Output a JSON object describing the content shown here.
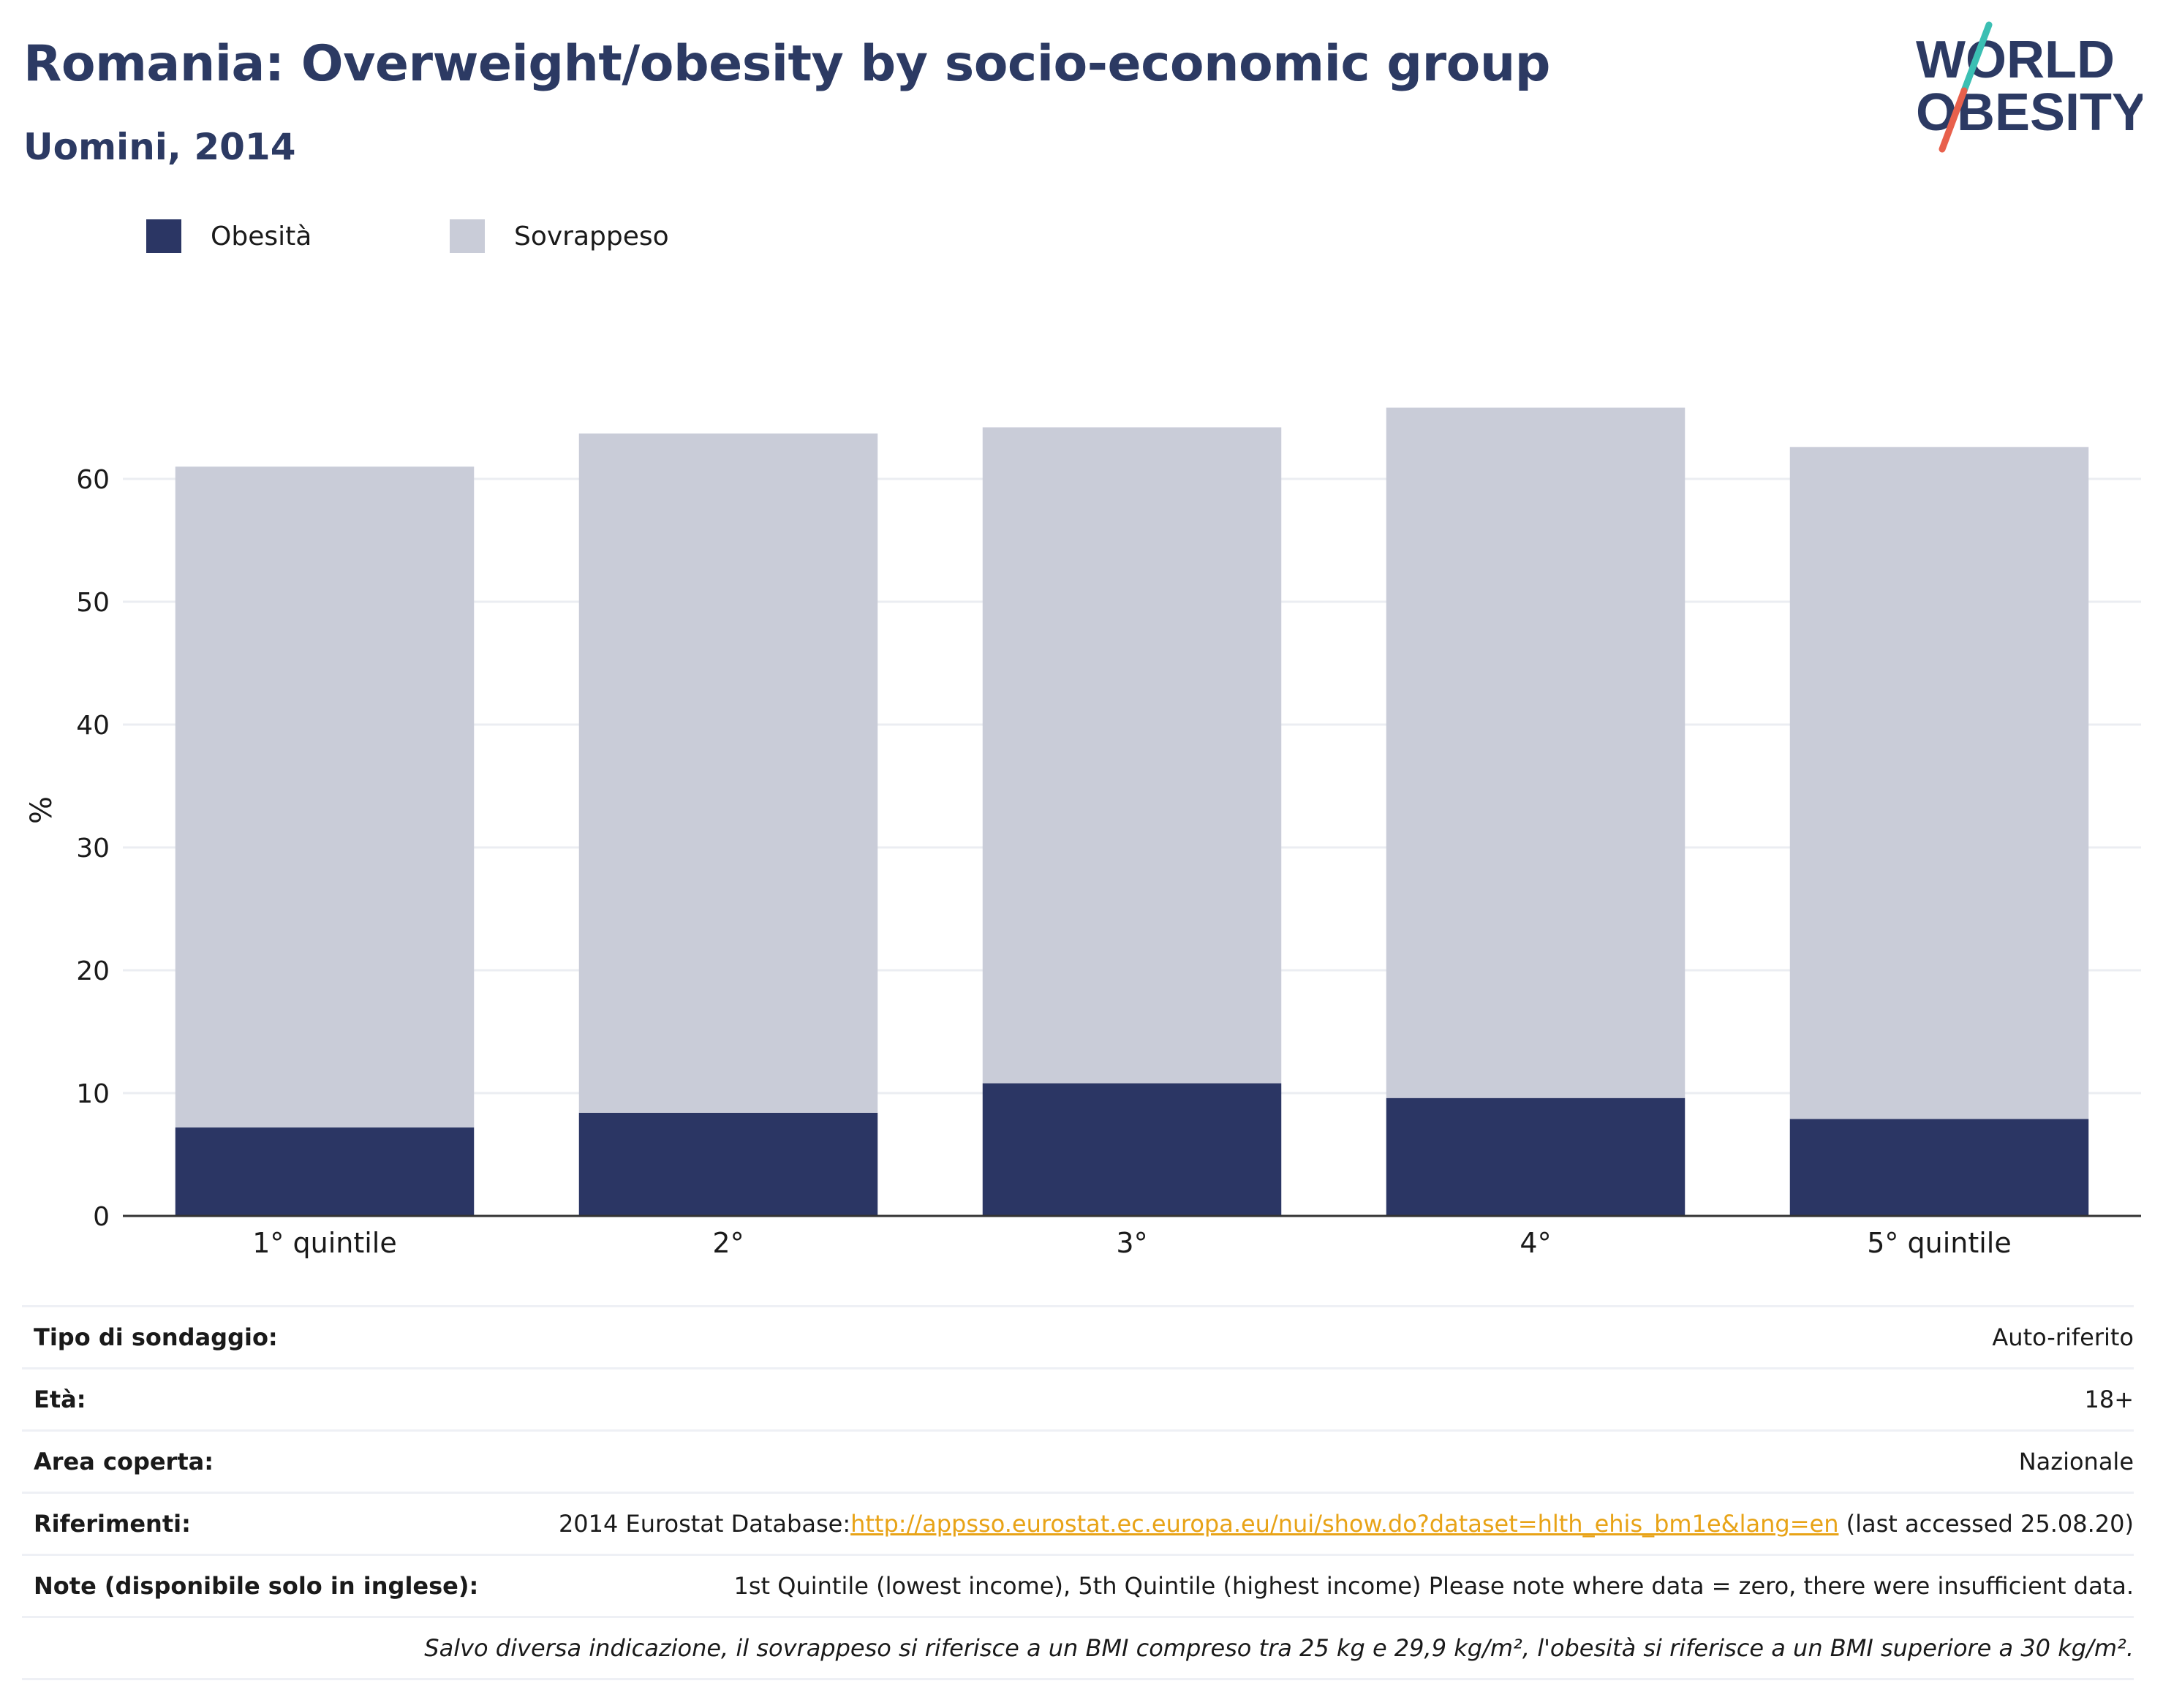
{
  "header": {
    "title": "Romania: Overweight/obesity by socio-economic group",
    "subtitle": "Uomini, 2014"
  },
  "logo": {
    "line1": "WORLD",
    "line2": "OBESITY",
    "text_color": "#2c3a63",
    "slash_colors": [
      "#3bbfb3",
      "#e8604c"
    ]
  },
  "legend": {
    "items": [
      {
        "label": "Obesità",
        "color": "#2b3664"
      },
      {
        "label": "Sovrappeso",
        "color": "#c9ccd8"
      }
    ]
  },
  "chart_data": {
    "type": "bar",
    "stacked": true,
    "categories": [
      "1° quintile",
      "2°",
      "3°",
      "4°",
      "5° quintile"
    ],
    "series": [
      {
        "name": "Obesità",
        "color": "#2b3664",
        "values": [
          7.2,
          8.4,
          10.8,
          9.6,
          7.9
        ]
      },
      {
        "name": "Sovrappeso",
        "color": "#c9ccd8",
        "values": [
          53.8,
          55.3,
          53.4,
          56.2,
          54.7
        ]
      }
    ],
    "ylabel": "%",
    "ylim": [
      0,
      70
    ],
    "yticks": [
      0,
      10,
      20,
      30,
      40,
      50,
      60
    ],
    "grid": true,
    "legend_position": "top-left"
  },
  "info": {
    "rows": [
      {
        "key": "Tipo di sondaggio:",
        "value": "Auto-riferito"
      },
      {
        "key": "Età:",
        "value": "18+"
      },
      {
        "key": "Area coperta:",
        "value": "Nazionale"
      },
      {
        "key": "Riferimenti:",
        "value_prefix": "2014 Eurostat Database:",
        "link": "http://appsso.eurostat.ec.europa.eu/nui/show.do?dataset=hlth_ehis_bm1e&lang=en",
        "value_suffix": " (last accessed 25.08.20)"
      },
      {
        "key": "Note (disponibile solo in inglese):",
        "value": "1st Quintile (lowest income), 5th Quintile (highest income) Please note where data = zero, there were insufficient data."
      }
    ],
    "footnote": "Salvo diversa indicazione, il sovrappeso si riferisce a un BMI compreso tra 25 kg e 29,9 kg/m², l'obesità si riferisce a un BMI superiore a 30 kg/m²."
  }
}
